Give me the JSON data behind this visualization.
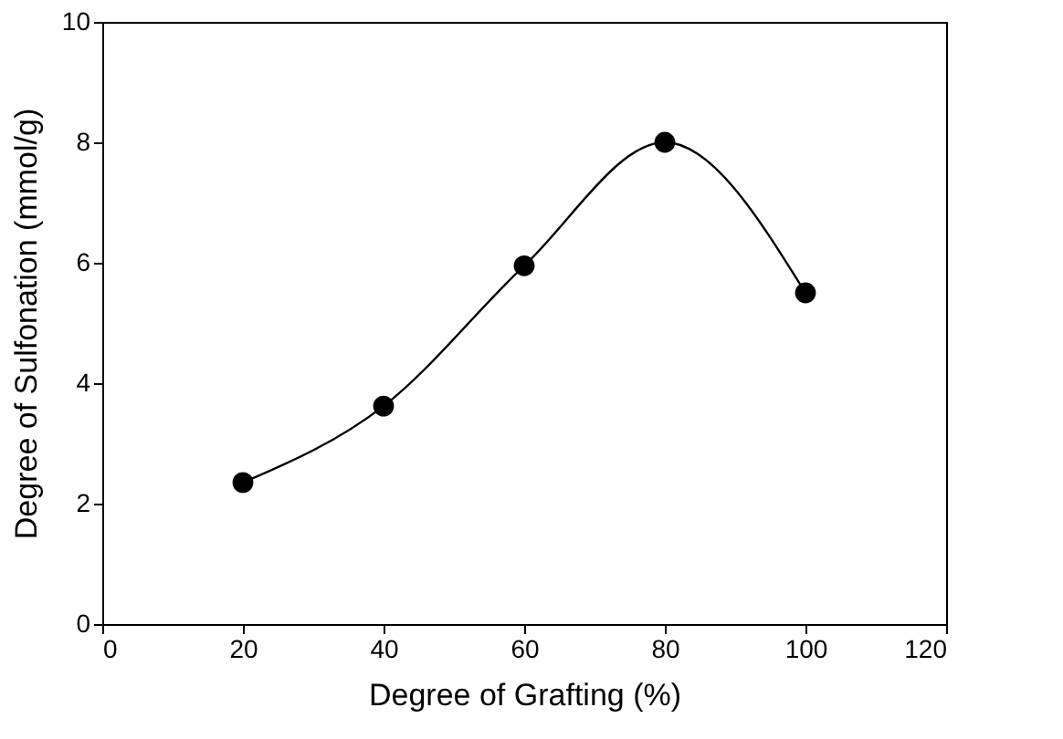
{
  "chart_data": {
    "type": "line",
    "xlabel": "Degree of Grafting (%)",
    "ylabel": "Degree of Sulfonation (mmol/g)",
    "x": [
      20,
      40,
      60,
      80,
      100
    ],
    "series": [
      {
        "color": "#000000",
        "values": [
          2.35,
          3.62,
          5.95,
          8.0,
          5.5
        ]
      }
    ],
    "xlim": [
      0,
      120
    ],
    "xticks": [
      0,
      20,
      40,
      60,
      80,
      100,
      120
    ],
    "ylim": [
      0,
      10
    ],
    "yticks": [
      0,
      2,
      4,
      6,
      8,
      10
    ],
    "grid": false,
    "marker": "circle",
    "line_style": "solid"
  }
}
